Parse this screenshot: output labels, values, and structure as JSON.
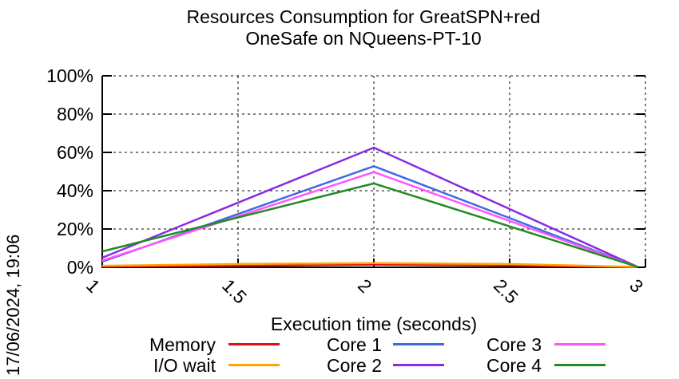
{
  "title": {
    "line1": "Resources Consumption for GreatSPN+red",
    "line2": "OneSafe on NQueens-PT-10"
  },
  "timestamp": "17/06/2024, 19:06",
  "axes": {
    "xlabel": "Execution time (seconds)",
    "x_ticks": [
      {
        "label": "1",
        "value": 1
      },
      {
        "label": "1.5",
        "value": 1.5
      },
      {
        "label": "2",
        "value": 2
      },
      {
        "label": "2.5",
        "value": 2.5
      },
      {
        "label": "3",
        "value": 3
      }
    ],
    "y_ticks": [
      {
        "label": "0%",
        "value": 0
      },
      {
        "label": "20%",
        "value": 20
      },
      {
        "label": "40%",
        "value": 40
      },
      {
        "label": "60%",
        "value": 60
      },
      {
        "label": "80%",
        "value": 80
      },
      {
        "label": "100%",
        "value": 100
      }
    ]
  },
  "legend": {
    "columns": [
      [
        "Memory",
        "I/O wait"
      ],
      [
        "Core 1",
        "Core 2"
      ],
      [
        "Core 3",
        "Core 4"
      ]
    ]
  },
  "chart_data": {
    "type": "line",
    "title": "Resources Consumption for GreatSPN+red OneSafe on NQueens-PT-10",
    "xlabel": "Execution time (seconds)",
    "ylabel": "",
    "xlim": [
      1,
      3
    ],
    "ylim": [
      0,
      100
    ],
    "x_ticks": [
      1,
      1.5,
      2,
      2.5,
      3
    ],
    "y_ticks": [
      0,
      20,
      40,
      60,
      80,
      100
    ],
    "grid": true,
    "legend_position": "bottom",
    "series": [
      {
        "name": "Memory",
        "color": "#e01010",
        "points": [
          [
            1,
            0.4
          ],
          [
            1.5,
            0.8
          ],
          [
            2,
            1.4
          ],
          [
            2.5,
            0.9
          ],
          [
            2.97,
            0.1
          ]
        ]
      },
      {
        "name": "I/O wait",
        "color": "#ffa500",
        "points": [
          [
            1,
            0.8
          ],
          [
            1.5,
            1.7
          ],
          [
            2,
            2.2
          ],
          [
            2.5,
            1.7
          ],
          [
            2.97,
            0.2
          ]
        ]
      },
      {
        "name": "Core 1",
        "color": "#4169e1",
        "points": [
          [
            1,
            2.9
          ],
          [
            2,
            52.8
          ],
          [
            2.97,
            0.2
          ]
        ]
      },
      {
        "name": "Core 2",
        "color": "#8a2be2",
        "points": [
          [
            1,
            5.0
          ],
          [
            2,
            62.5
          ],
          [
            2.97,
            0.3
          ]
        ]
      },
      {
        "name": "Core 3",
        "color": "#ff55ff",
        "points": [
          [
            1,
            3.5
          ],
          [
            2,
            49.7
          ],
          [
            2.97,
            0.2
          ]
        ]
      },
      {
        "name": "Core 4",
        "color": "#228b22",
        "points": [
          [
            1,
            8.3
          ],
          [
            2,
            43.8
          ],
          [
            2.97,
            0.3
          ]
        ]
      }
    ]
  }
}
